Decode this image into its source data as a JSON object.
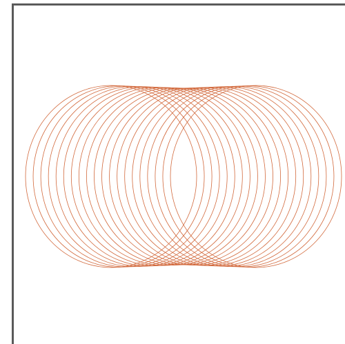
{
  "canvas": {
    "frame_color": "#5a5a5a",
    "background": "#ffffff"
  },
  "drawing": {
    "shape": "ellipse",
    "ring_count": 20,
    "stroke_color": "#d2693c",
    "fill": "none"
  }
}
